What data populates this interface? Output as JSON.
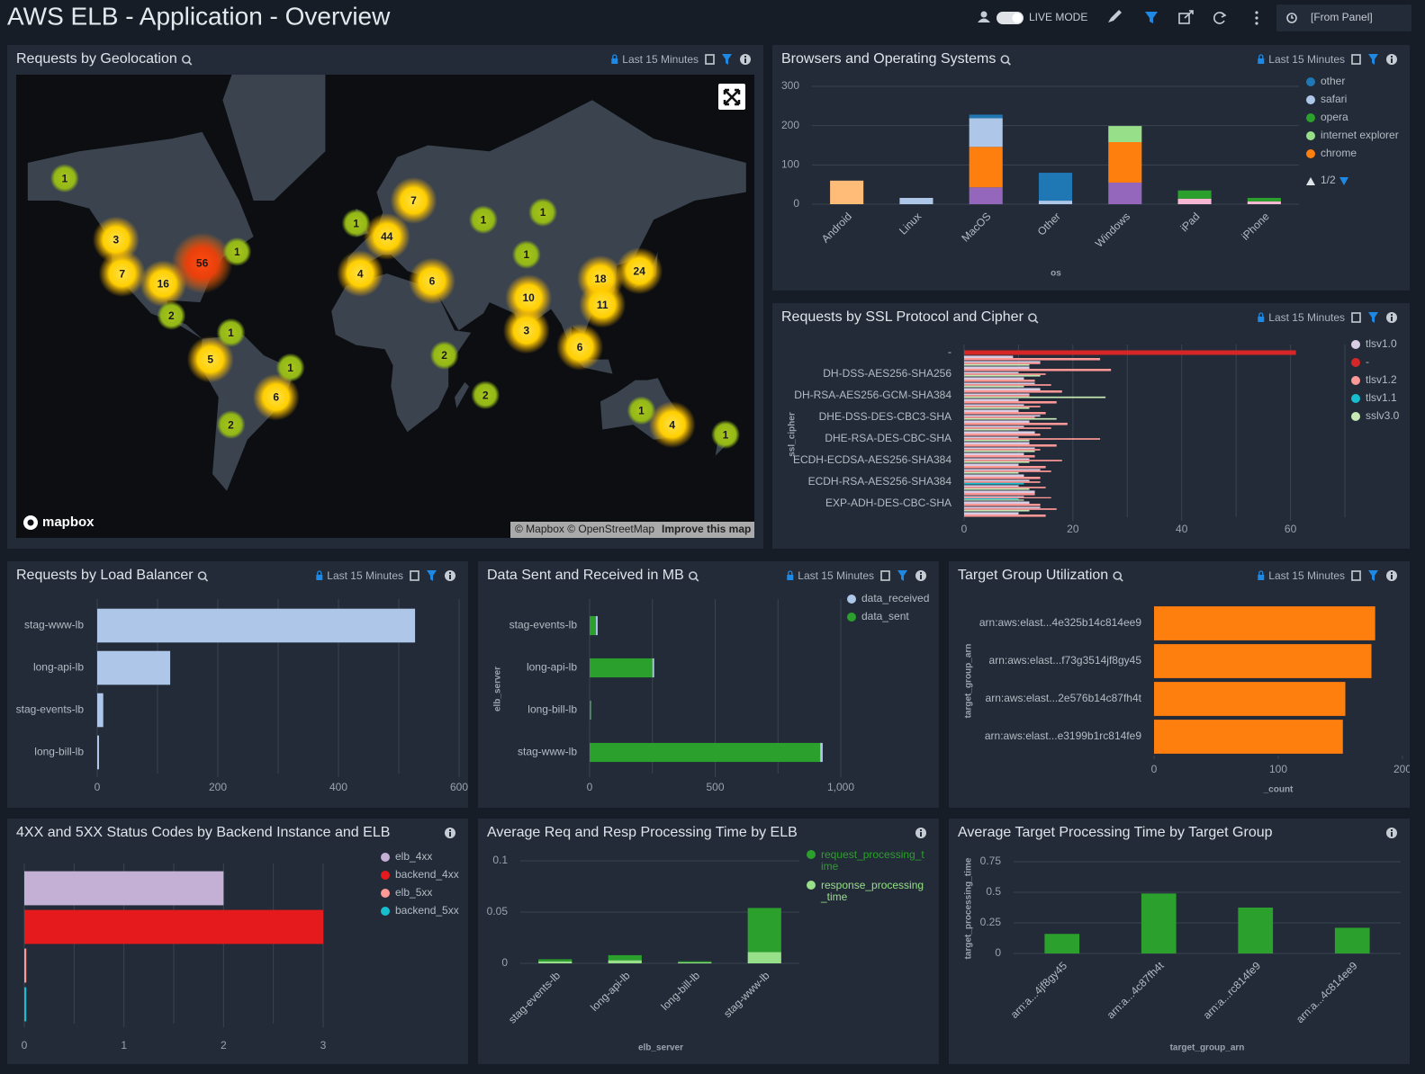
{
  "header": {
    "title": "AWS ELB - Application - Overview",
    "live_mode": "LIVE MODE",
    "time_filter": "[From Panel]"
  },
  "panels": [
    {
      "title": "Requests by Geolocation",
      "time_range": "Last 15 Minutes",
      "chart": {
        "type": "map",
        "logo": "mapbox",
        "attribution": "© Mapbox © OpenStreetMap",
        "improve_link": "Improve this map",
        "clusters": [
          {
            "lon": -147,
            "lat": 65,
            "value": 1
          },
          {
            "lon": -122,
            "lat": 49,
            "value": 3
          },
          {
            "lon": -119,
            "lat": 37,
            "value": 7
          },
          {
            "lon": -99,
            "lat": 33,
            "value": 16
          },
          {
            "lon": -80,
            "lat": 41,
            "value": 56
          },
          {
            "lon": -63,
            "lat": 45,
            "value": 1
          },
          {
            "lon": -95,
            "lat": 19,
            "value": 2
          },
          {
            "lon": -66,
            "lat": 11,
            "value": 1
          },
          {
            "lon": -76,
            "lat": -2,
            "value": 5
          },
          {
            "lon": -37,
            "lat": -6,
            "value": 1
          },
          {
            "lon": -44,
            "lat": -20,
            "value": 6
          },
          {
            "lon": -66,
            "lat": -32,
            "value": 2
          },
          {
            "lon": -5,
            "lat": 54,
            "value": 1
          },
          {
            "lon": 23,
            "lat": 60,
            "value": 7
          },
          {
            "lon": 10,
            "lat": 50,
            "value": 44
          },
          {
            "lon": -3,
            "lat": 37,
            "value": 4
          },
          {
            "lon": 32,
            "lat": 34,
            "value": 6
          },
          {
            "lon": 57,
            "lat": 55,
            "value": 1
          },
          {
            "lon": 86,
            "lat": 57,
            "value": 1
          },
          {
            "lon": 78,
            "lat": 44,
            "value": 1
          },
          {
            "lon": 79,
            "lat": 27,
            "value": 10
          },
          {
            "lon": 78,
            "lat": 12,
            "value": 3
          },
          {
            "lon": 114,
            "lat": 35,
            "value": 18
          },
          {
            "lon": 133,
            "lat": 38,
            "value": 24
          },
          {
            "lon": 115,
            "lat": 24,
            "value": 11
          },
          {
            "lon": 104,
            "lat": 4,
            "value": 6
          },
          {
            "lon": 38,
            "lat": 0,
            "value": 2
          },
          {
            "lon": 58,
            "lat": -19,
            "value": 2
          },
          {
            "lon": 134,
            "lat": -26,
            "value": 1
          },
          {
            "lon": 149,
            "lat": -32,
            "value": 4
          },
          {
            "lon": 175,
            "lat": -36,
            "value": 1
          }
        ]
      }
    },
    {
      "title": "Browsers and Operating Systems",
      "time_range": "Last 15 Minutes",
      "chart": {
        "type": "bar",
        "stacked": true,
        "grid": true,
        "xlabel": "os",
        "legend_page": "1/2",
        "categories": [
          "Android",
          "Linux",
          "MacOS",
          "Other",
          "Windows",
          "iPad",
          "iPhone"
        ],
        "series": [
          {
            "name": "other",
            "color": "#1f77b4",
            "values": [
              0,
              0,
              9,
              71,
              0,
              0,
              0
            ]
          },
          {
            "name": "safari",
            "color": "#aec7e8",
            "values": [
              0,
              16,
              73,
              9,
              0,
              0,
              0
            ]
          },
          {
            "name": "opera",
            "color": "#2ca02c",
            "values": [
              0,
              0,
              0,
              0,
              0,
              21,
              9
            ]
          },
          {
            "name": "internet explorer",
            "color": "#98df8a",
            "values": [
              0,
              0,
              0,
              0,
              41,
              0,
              0
            ]
          },
          {
            "name": "chrome",
            "color": "#ff7f0e",
            "values": [
              0,
              0,
              103,
              0,
              103,
              0,
              0
            ]
          },
          {
            "color": "#ffbb78",
            "values": [
              60,
              0,
              0,
              0,
              0,
              0,
              0
            ]
          },
          {
            "color": "#9467bd",
            "values": [
              0,
              0,
              43,
              0,
              55,
              0,
              0
            ]
          },
          {
            "color": "#f7b6d2",
            "values": [
              0,
              0,
              0,
              0,
              0,
              14,
              7
            ]
          }
        ],
        "ylim": [
          0,
          300
        ],
        "yticks": [
          0,
          100,
          200,
          300
        ]
      }
    },
    {
      "title": "Requests by SSL Protocol and Cipher",
      "time_range": "Last 15 Minutes",
      "chart": {
        "type": "hbar",
        "ylabel": "ssl_cipher",
        "categories": [
          "-",
          null,
          null,
          null,
          "DH-DSS-AES256-SHA256",
          null,
          null,
          null,
          "DH-RSA-AES256-GCM-SHA384",
          null,
          null,
          null,
          "DHE-DSS-DES-CBC3-SHA",
          null,
          null,
          null,
          "DHE-RSA-DES-CBC-SHA",
          null,
          null,
          null,
          "ECDH-ECDSA-AES256-SHA384",
          null,
          null,
          null,
          "ECDH-RSA-AES256-SHA384",
          null,
          null,
          null,
          "EXP-ADH-DES-CBC-SHA",
          null,
          null
        ],
        "series": [
          {
            "name": "tlsv1.0",
            "color": "#d9cde6",
            "values": [
              null,
              9,
              14,
              12,
              10,
              11,
              13,
              14,
              12,
              10,
              11,
              10,
              14,
              12,
              11,
              13,
              10,
              12,
              13,
              11,
              12,
              10,
              14,
              11,
              12,
              10,
              13,
              11,
              12,
              14,
              10
            ]
          },
          {
            "name": "-",
            "color": "#d62728",
            "values": [
              61,
              null,
              null,
              null,
              null,
              null,
              null,
              null,
              null,
              null,
              null,
              null,
              null,
              null,
              null,
              null,
              null,
              null,
              null,
              null,
              null,
              null,
              null,
              null,
              null,
              null,
              null,
              null,
              null,
              null,
              null
            ]
          },
          {
            "name": "tlsv1.2",
            "color": "#ff9896",
            "values": [
              null,
              25,
              14,
              27,
              15,
              13,
              16,
              18,
              12,
              17,
              14,
              15,
              13,
              19,
              16,
              14,
              25,
              17,
              14,
              13,
              18,
              15,
              16,
              14,
              14,
              15,
              13,
              16,
              14,
              17,
              15
            ]
          },
          {
            "name": "tlsv1.1",
            "color": "#17becf",
            "values": [
              null,
              null,
              null,
              null,
              null,
              null,
              null,
              null,
              null,
              null,
              null,
              null,
              null,
              null,
              null,
              null,
              null,
              null,
              null,
              null,
              null,
              null,
              null,
              null,
              11,
              null,
              null,
              10,
              null,
              null,
              null
            ]
          },
          {
            "name": "sslv3.0",
            "color": "#c7e9b4",
            "values": [
              null,
              null,
              12,
              null,
              14,
              null,
              11,
              null,
              26,
              null,
              12,
              null,
              17,
              null,
              10,
              null,
              12,
              null,
              13,
              null,
              12,
              null,
              10,
              null,
              null,
              12,
              null,
              11,
              null,
              12,
              null
            ]
          }
        ],
        "xlim": [
          0,
          70
        ],
        "xticks": [
          0,
          20,
          40,
          60
        ],
        "xgrid": [
          0,
          10,
          20,
          30,
          40,
          50,
          60,
          70
        ]
      }
    },
    {
      "title": "Requests by Load Balancer",
      "time_range": "Last 15 Minutes",
      "chart": {
        "type": "hbar",
        "categories": [
          "stag-www-lb",
          "long-api-lb",
          "stag-events-lb",
          "long-bill-lb"
        ],
        "values": [
          527,
          121,
          10,
          3
        ],
        "color": "#aec7e8",
        "xlim": [
          0,
          600
        ],
        "xticks": [
          0,
          200,
          400,
          600
        ],
        "xgrid": [
          0,
          100,
          200,
          300,
          400,
          500,
          600
        ]
      }
    },
    {
      "title": "Data Sent and Received in MB",
      "time_range": "Last 15 Minutes",
      "chart": {
        "type": "hbar",
        "stacked": true,
        "ylabel": "elb_server",
        "categories": [
          "stag-events-lb",
          "long-api-lb",
          "long-bill-lb",
          "stag-www-lb"
        ],
        "series": [
          {
            "name": "data_received",
            "color": "#aec7e8",
            "values": [
              7,
              7,
              1,
              10
            ]
          },
          {
            "name": "data_sent",
            "color": "#2ca02c",
            "values": [
              25,
              250,
              5,
              918
            ]
          }
        ],
        "xlim": [
          0,
          1000
        ],
        "xticks": [
          0,
          500,
          {
            "value": 1000,
            "label": "1,000"
          }
        ],
        "xgrid": [
          0,
          250,
          500,
          750,
          1000
        ]
      }
    },
    {
      "title": "Target Group Utilization",
      "time_range": "Last 15 Minutes",
      "chart": {
        "type": "hbar",
        "xlabel": "_count",
        "ylabel": "target_group_arn",
        "categories": [
          "arn:aws:elast...4e325b14c814ee9",
          "arn:aws:elast...f73g3514jf8gy45",
          "arn:aws:elast...2e576b14c87fh4t",
          "arn:aws:elast...e3199b1rc814fe9"
        ],
        "values": [
          178,
          175,
          154,
          152
        ],
        "color": "#ff7f0e",
        "xlim": [
          0,
          200
        ],
        "xticks": [
          0,
          100,
          200
        ]
      }
    },
    {
      "title": "4XX and 5XX Status Codes by Backend Instance and ELB",
      "chart": {
        "type": "hbar",
        "categories": [
          null,
          null,
          null,
          null
        ],
        "series": [
          {
            "name": "elb_4xx",
            "color": "#c5b0d5",
            "values": [
              2,
              null,
              null,
              null
            ]
          },
          {
            "name": "backend_4xx",
            "color": "#e41a1c",
            "values": [
              null,
              3,
              null,
              null
            ]
          },
          {
            "name": "elb_5xx",
            "color": "#ff9896",
            "values": [
              null,
              null,
              0.02,
              null
            ]
          },
          {
            "name": "backend_5xx",
            "color": "#17becf",
            "values": [
              null,
              null,
              null,
              0.02
            ]
          }
        ],
        "xlim": [
          0,
          3
        ],
        "xticks": [
          0,
          1,
          2,
          3
        ],
        "xgrid": [
          0,
          0.5,
          1,
          1.5,
          2,
          2.5,
          3
        ]
      }
    },
    {
      "title": "Average Req and Resp Processing Time by ELB",
      "chart": {
        "type": "bar",
        "stacked": true,
        "grid": true,
        "xlabel": "elb_server",
        "legend_text_colored": true,
        "categories": [
          "stag-events-lb",
          "long-api-lb",
          "long-bill-lb",
          "stag-www-lb"
        ],
        "series": [
          {
            "name": "request_processing_time",
            "color": "#2ca02c",
            "values": [
              0.002,
              0.005,
              0.001,
              0.043
            ]
          },
          {
            "name": "response_processing_time",
            "color": "#98df8a",
            "values": [
              0.002,
              0.003,
              0.001,
              0.011
            ]
          }
        ],
        "ylim": [
          0,
          0.1
        ],
        "yticks": [
          0,
          0.05,
          0.1
        ]
      }
    },
    {
      "title": "Average Target Processing Time by Target Group",
      "chart": {
        "type": "bar",
        "grid": true,
        "xlabel": "target_group_arn",
        "ylabel": "target_processing_time",
        "categories": [
          "arn:a...4jf8gy45",
          "arn:a...4c87fh4t",
          "arn:a...rc814fe9",
          "arn:a...4c814ee9"
        ],
        "values": [
          0.16,
          0.49,
          0.375,
          0.21
        ],
        "color": "#2ca02c",
        "ylim": [
          0,
          0.75
        ],
        "yticks": [
          0,
          0.25,
          0.5,
          0.75
        ]
      }
    }
  ]
}
